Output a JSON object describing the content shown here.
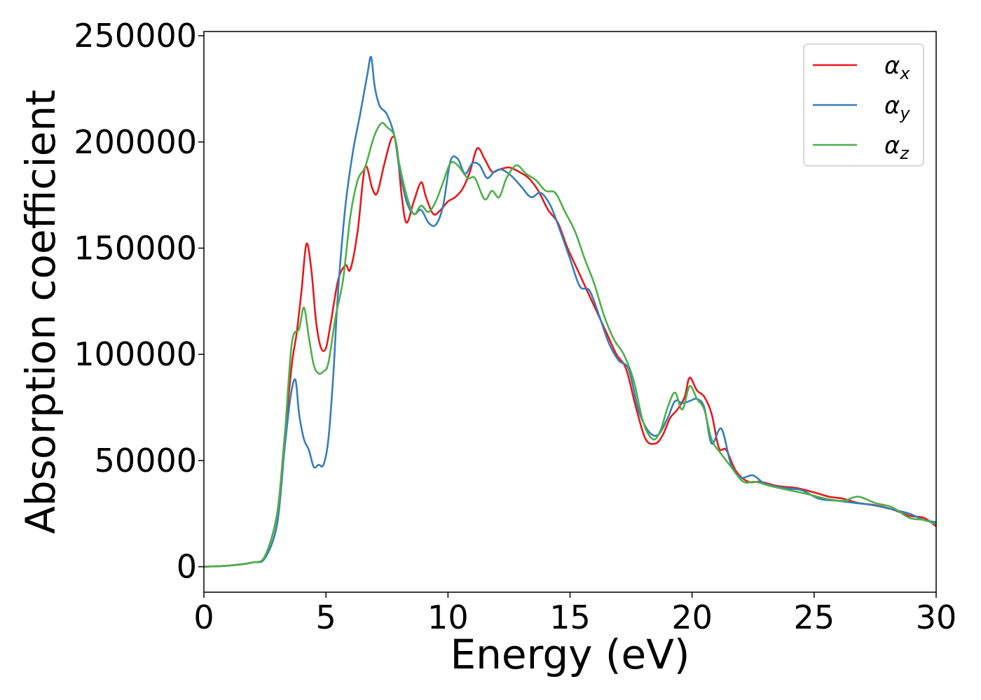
{
  "chart_data": {
    "type": "line",
    "xlabel": "Energy (eV)",
    "ylabel": "Absorption coefficient",
    "xlim": [
      0,
      30
    ],
    "ylim": [
      -12000,
      252000
    ],
    "xticks": [
      0,
      5,
      10,
      15,
      20,
      25,
      30
    ],
    "yticks": [
      0,
      50000,
      100000,
      150000,
      200000,
      250000
    ],
    "grid": false,
    "legend_position": "top-right",
    "series": [
      {
        "name": "αx",
        "symbol": "α",
        "subscript": "x",
        "color": "#e41a1c",
        "x": [
          0,
          1,
          2,
          2.5,
          3,
          3.3,
          3.6,
          3.8,
          4.0,
          4.2,
          4.4,
          4.6,
          4.8,
          5.0,
          5.2,
          5.5,
          5.8,
          6.0,
          6.3,
          6.6,
          6.9,
          7.1,
          7.4,
          7.7,
          7.9,
          8.1,
          8.3,
          8.6,
          8.9,
          9.1,
          9.4,
          9.7,
          10,
          10.3,
          10.6,
          10.9,
          11.2,
          11.5,
          11.8,
          12.1,
          12.5,
          12.9,
          13.3,
          13.7,
          14.1,
          14.5,
          14.9,
          15.3,
          15.7,
          16.1,
          16.5,
          16.9,
          17.3,
          17.7,
          18.1,
          18.5,
          18.8,
          19.1,
          19.4,
          19.7,
          19.9,
          20.2,
          20.5,
          20.8,
          21.1,
          21.4,
          21.8,
          22.3,
          22.8,
          23.5,
          24.3,
          25,
          25.6,
          26.2,
          26.8,
          27.5,
          28.2,
          28.9,
          29.5,
          30
        ],
        "y": [
          0,
          500,
          2000,
          5000,
          25000,
          60000,
          95000,
          110000,
          130000,
          152000,
          140000,
          115000,
          103000,
          103000,
          115000,
          135000,
          142000,
          140000,
          158000,
          188000,
          178000,
          176000,
          190000,
          202000,
          198000,
          175000,
          162000,
          172000,
          181000,
          174000,
          166000,
          168000,
          172000,
          174000,
          178000,
          186000,
          197000,
          192000,
          186000,
          187000,
          188000,
          186000,
          183000,
          177000,
          168000,
          162000,
          150000,
          140000,
          130000,
          120000,
          110000,
          100000,
          93000,
          75000,
          60000,
          58000,
          62000,
          70000,
          74000,
          80000,
          89000,
          83000,
          80000,
          72000,
          56000,
          55000,
          45000,
          40000,
          40000,
          38000,
          37000,
          35000,
          33000,
          32000,
          30000,
          29000,
          27000,
          24000,
          23000,
          19000
        ]
      },
      {
        "name": "αy",
        "symbol": "α",
        "subscript": "y",
        "color": "#377eb8",
        "x": [
          0,
          1,
          2,
          2.5,
          3,
          3.3,
          3.55,
          3.75,
          3.9,
          4.1,
          4.3,
          4.5,
          4.7,
          4.9,
          5.1,
          5.3,
          5.5,
          5.8,
          6.1,
          6.4,
          6.7,
          6.85,
          7.0,
          7.2,
          7.5,
          7.8,
          8.0,
          8.3,
          8.6,
          8.9,
          9.2,
          9.5,
          9.8,
          10.1,
          10.4,
          10.7,
          11.0,
          11.3,
          11.6,
          11.9,
          12.2,
          12.6,
          13.0,
          13.4,
          13.8,
          14.2,
          14.6,
          15.0,
          15.4,
          15.8,
          16.2,
          16.6,
          17.0,
          17.4,
          17.8,
          18.2,
          18.6,
          19.0,
          19.3,
          19.6,
          19.9,
          20.2,
          20.5,
          20.8,
          21.2,
          21.6,
          22.0,
          22.5,
          23,
          23.8,
          24.5,
          25.2,
          26,
          26.7,
          27.4,
          28.2,
          28.9,
          29.5,
          30
        ],
        "y": [
          0,
          500,
          2000,
          4000,
          20000,
          55000,
          80000,
          88000,
          72000,
          60000,
          55000,
          47000,
          48000,
          48000,
          60000,
          90000,
          130000,
          170000,
          195000,
          213000,
          232000,
          240000,
          226000,
          217000,
          213000,
          203000,
          188000,
          172000,
          166000,
          168000,
          162000,
          161000,
          170000,
          191000,
          192000,
          185000,
          190000,
          189000,
          183000,
          186000,
          187000,
          184000,
          179000,
          174000,
          176000,
          170000,
          158000,
          145000,
          132000,
          130000,
          118000,
          105000,
          97000,
          93000,
          74000,
          64000,
          62000,
          70000,
          78000,
          77000,
          78000,
          79000,
          75000,
          58000,
          65000,
          48000,
          42000,
          43000,
          39000,
          37000,
          36000,
          32000,
          31000,
          30000,
          29000,
          27000,
          25000,
          22000,
          21000
        ]
      },
      {
        "name": "αz",
        "symbol": "α",
        "subscript": "z",
        "color": "#4daf4a",
        "x": [
          0,
          1,
          2,
          2.5,
          3,
          3.3,
          3.6,
          3.9,
          4.1,
          4.3,
          4.5,
          4.7,
          4.9,
          5.1,
          5.4,
          5.7,
          6.0,
          6.3,
          6.6,
          6.9,
          7.1,
          7.3,
          7.5,
          7.8,
          8.0,
          8.3,
          8.6,
          8.9,
          9.2,
          9.5,
          9.8,
          10.1,
          10.4,
          10.8,
          11.1,
          11.5,
          11.8,
          12.1,
          12.4,
          12.8,
          13.2,
          13.6,
          14.0,
          14.4,
          14.8,
          15.2,
          15.6,
          16.0,
          16.4,
          16.8,
          17.2,
          17.6,
          18.0,
          18.4,
          18.7,
          19.0,
          19.3,
          19.6,
          19.9,
          20.2,
          20.5,
          20.8,
          21.2,
          21.6,
          22.1,
          22.6,
          23.2,
          24,
          24.8,
          25.5,
          26.2,
          26.8,
          27.5,
          28.2,
          28.9,
          29.5,
          30
        ],
        "y": [
          0,
          500,
          2000,
          5000,
          25000,
          60000,
          105000,
          112000,
          122000,
          108000,
          95000,
          91000,
          92000,
          96000,
          118000,
          135000,
          165000,
          182000,
          188000,
          200000,
          206000,
          209000,
          207000,
          203000,
          190000,
          175000,
          166000,
          170000,
          167000,
          172000,
          181000,
          190000,
          189000,
          183000,
          183000,
          173000,
          177000,
          174000,
          183000,
          189000,
          185000,
          182000,
          177000,
          176000,
          167000,
          158000,
          145000,
          133000,
          118000,
          107000,
          100000,
          88000,
          68000,
          60000,
          64000,
          75000,
          82000,
          74000,
          85000,
          79000,
          74000,
          60000,
          53000,
          47000,
          40000,
          40000,
          38000,
          36000,
          34000,
          32000,
          31000,
          33000,
          30000,
          28000,
          23000,
          22000,
          20000
        ]
      }
    ]
  }
}
